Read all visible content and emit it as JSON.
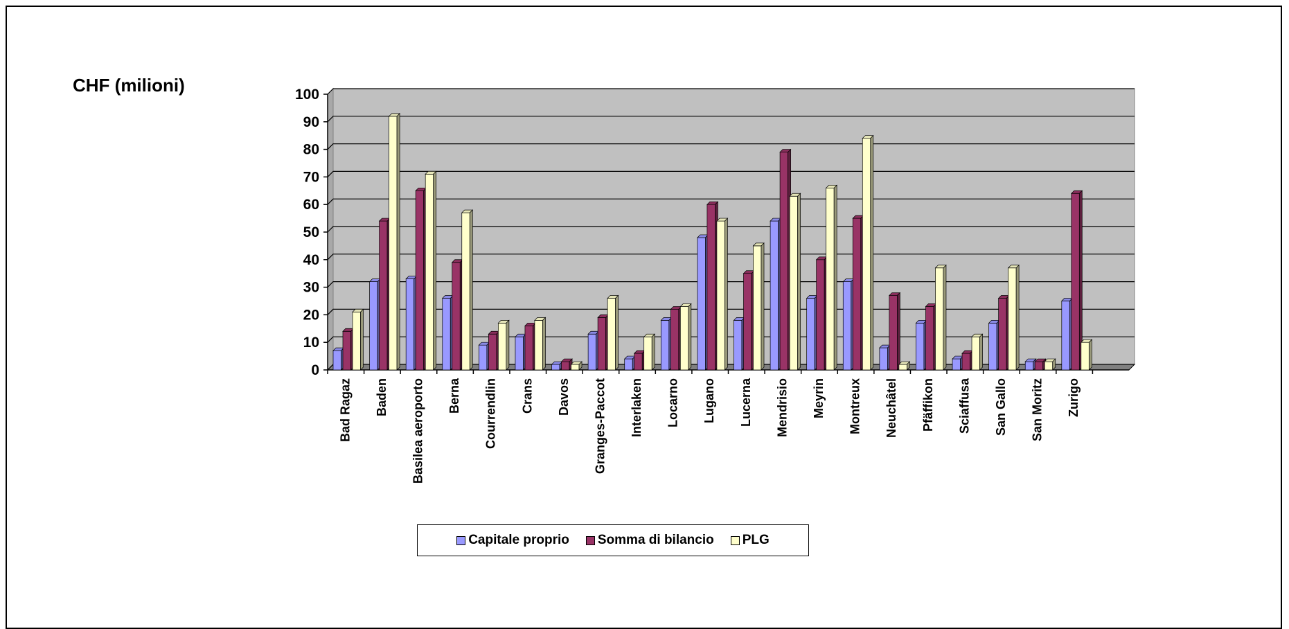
{
  "chart_data": {
    "type": "bar",
    "title": "",
    "ylabel": "CHF (milioni)",
    "xlabel": "",
    "ylim": [
      0,
      100
    ],
    "yticks": [
      0,
      10,
      20,
      30,
      40,
      50,
      60,
      70,
      80,
      90,
      100
    ],
    "grid": true,
    "legend_position": "bottom",
    "categories": [
      "Bad Ragaz",
      "Baden",
      "Basilea aeroporto",
      "Berna",
      "Courrendlin",
      "Crans",
      "Davos",
      "Granges-Paccot",
      "Interlaken",
      "Locarno",
      "Lugano",
      "Lucerna",
      "Mendrisio",
      "Meyrin",
      "Montreux",
      "Neuchâtel",
      "Pfäffikon",
      "Sciaffusa",
      "San Gallo",
      "San Moritz",
      "Zurigo"
    ],
    "series": [
      {
        "name": "Capitale proprio",
        "color": "#9999ff",
        "values": [
          7,
          32,
          33,
          26,
          9,
          12,
          2,
          13,
          4,
          18,
          48,
          18,
          54,
          26,
          32,
          8,
          17,
          4,
          17,
          3,
          25
        ]
      },
      {
        "name": "Somma di bilancio",
        "color": "#993366",
        "values": [
          14,
          54,
          65,
          39,
          13,
          16,
          3,
          19,
          6,
          22,
          60,
          35,
          79,
          40,
          55,
          27,
          23,
          6,
          26,
          3,
          64
        ]
      },
      {
        "name": "PLG",
        "color": "#ffffcc",
        "values": [
          21,
          92,
          71,
          57,
          17,
          18,
          2,
          26,
          12,
          23,
          54,
          45,
          63,
          66,
          84,
          2,
          37,
          12,
          37,
          3,
          10
        ]
      }
    ]
  },
  "colors": {
    "plot_background": "#c0c0c0",
    "floor": "#808080",
    "gridline": "#000000"
  }
}
